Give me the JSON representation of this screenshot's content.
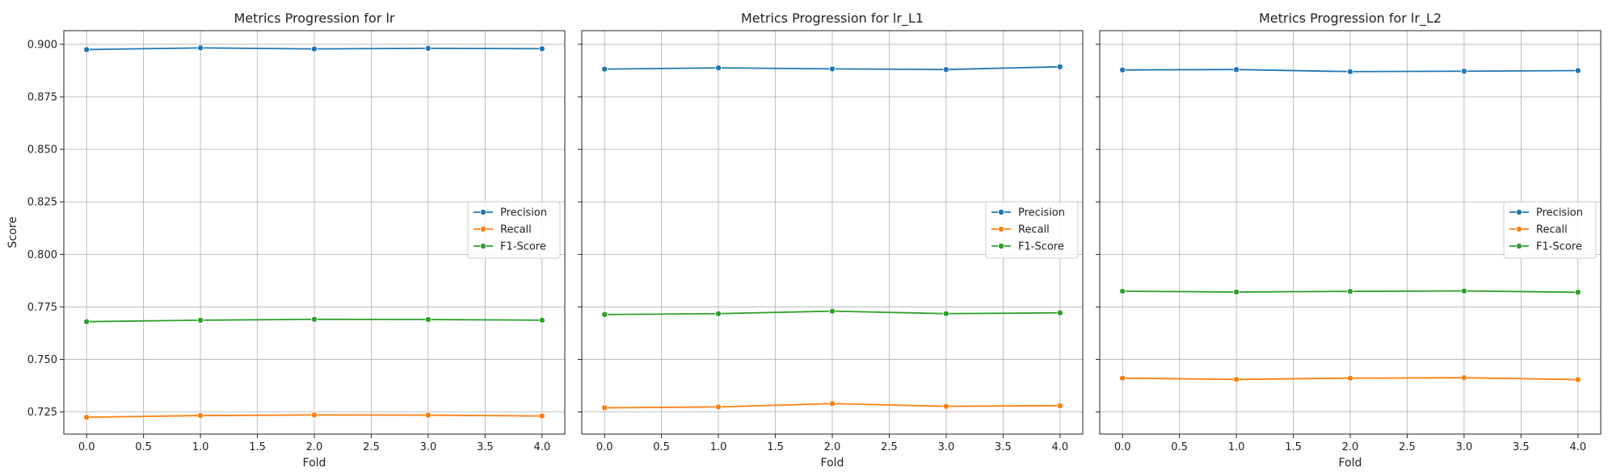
{
  "chart_data": [
    {
      "type": "line",
      "title": "Metrics Progression for lr",
      "xlabel": "Fold",
      "ylabel": "Score",
      "x": [
        0,
        1,
        2,
        3,
        4
      ],
      "xlim": [
        -0.2,
        4.2
      ],
      "ylim": [
        0.7145,
        0.9065
      ],
      "xticks": [
        "0.0",
        "0.5",
        "1.0",
        "1.5",
        "2.0",
        "2.5",
        "3.0",
        "3.5",
        "4.0"
      ],
      "yticks": [
        "0.725",
        "0.750",
        "0.775",
        "0.800",
        "0.825",
        "0.850",
        "0.875",
        "0.900"
      ],
      "grid": true,
      "legend": "center-right",
      "series": [
        {
          "name": "Precision",
          "color": "#1f77b4",
          "values": [
            0.8975,
            0.8983,
            0.8978,
            0.8981,
            0.8979
          ]
        },
        {
          "name": "Recall",
          "color": "#ff7f0e",
          "values": [
            0.7225,
            0.7233,
            0.7236,
            0.7235,
            0.7231
          ]
        },
        {
          "name": "F1-Score",
          "color": "#2ca02c",
          "values": [
            0.768,
            0.7687,
            0.7691,
            0.769,
            0.7687
          ]
        }
      ]
    },
    {
      "type": "line",
      "title": "Metrics Progression for lr_L1",
      "xlabel": "Fold",
      "ylabel": "",
      "x": [
        0,
        1,
        2,
        3,
        4
      ],
      "xlim": [
        -0.2,
        4.2
      ],
      "ylim": [
        0.7145,
        0.9065
      ],
      "xticks": [
        "0.0",
        "0.5",
        "1.0",
        "1.5",
        "2.0",
        "2.5",
        "3.0",
        "3.5",
        "4.0"
      ],
      "yticks": [],
      "grid": true,
      "legend": "center-right",
      "series": [
        {
          "name": "Precision",
          "color": "#1f77b4",
          "values": [
            0.8882,
            0.8888,
            0.8883,
            0.888,
            0.8893
          ]
        },
        {
          "name": "Recall",
          "color": "#ff7f0e",
          "values": [
            0.727,
            0.7274,
            0.729,
            0.7277,
            0.728
          ]
        },
        {
          "name": "F1-Score",
          "color": "#2ca02c",
          "values": [
            0.7714,
            0.7718,
            0.773,
            0.7718,
            0.7722
          ]
        }
      ]
    },
    {
      "type": "line",
      "title": "Metrics Progression for lr_L2",
      "xlabel": "Fold",
      "ylabel": "",
      "x": [
        0,
        1,
        2,
        3,
        4
      ],
      "xlim": [
        -0.2,
        4.2
      ],
      "ylim": [
        0.7145,
        0.9065
      ],
      "xticks": [
        "0.0",
        "0.5",
        "1.0",
        "1.5",
        "2.0",
        "2.5",
        "3.0",
        "3.5",
        "4.0"
      ],
      "yticks": [],
      "grid": true,
      "legend": "center-right",
      "series": [
        {
          "name": "Precision",
          "color": "#1f77b4",
          "values": [
            0.8878,
            0.888,
            0.887,
            0.8872,
            0.8875
          ]
        },
        {
          "name": "Recall",
          "color": "#ff7f0e",
          "values": [
            0.7411,
            0.7405,
            0.7411,
            0.7413,
            0.7404
          ]
        },
        {
          "name": "F1-Score",
          "color": "#2ca02c",
          "values": [
            0.7825,
            0.7821,
            0.7824,
            0.7826,
            0.782
          ]
        }
      ]
    }
  ]
}
